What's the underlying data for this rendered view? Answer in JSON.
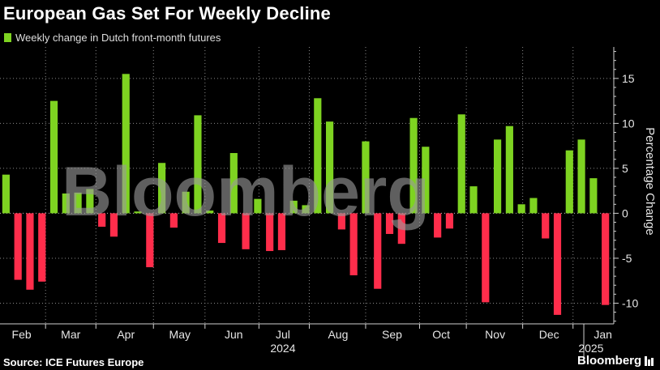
{
  "header": {
    "title": "European Gas Set For Weekly Decline"
  },
  "footer": {
    "source": "Source: ICE Futures Europe",
    "brand": "Bloomberg"
  },
  "watermark": "Bloomberg",
  "colors": {
    "positive": "#7ed321",
    "negative": "#ff2d4b",
    "background": "#000000",
    "grid": "#8a8a8a"
  },
  "chart_data": {
    "type": "bar",
    "title": "European Gas Set For Weekly Decline",
    "legend": [
      "Weekly change in Dutch front-month futures"
    ],
    "legend_position": "top-left",
    "xlabel": "",
    "ylabel": "Percentage Change",
    "ylim": [
      -12.3,
      18.5
    ],
    "yticks": [
      -10,
      -5,
      0,
      5,
      10,
      15
    ],
    "grid": true,
    "x_range": [
      0,
      51.2
    ],
    "x_year_labels": [
      {
        "label": "2024",
        "pos": 23.6
      },
      {
        "label": "2025",
        "pos": 49.3
      }
    ],
    "x_month_labels": [
      {
        "label": "Feb",
        "pos": 1.8
      },
      {
        "label": "Mar",
        "pos": 5.9
      },
      {
        "label": "Apr",
        "pos": 10.5
      },
      {
        "label": "May",
        "pos": 15.0
      },
      {
        "label": "Jun",
        "pos": 19.5
      },
      {
        "label": "Jul",
        "pos": 23.6
      },
      {
        "label": "Aug",
        "pos": 28.2
      },
      {
        "label": "Sep",
        "pos": 32.7
      },
      {
        "label": "Oct",
        "pos": 36.8
      },
      {
        "label": "Nov",
        "pos": 41.3
      },
      {
        "label": "Dec",
        "pos": 45.8
      },
      {
        "label": "Jan",
        "pos": 50.3
      }
    ],
    "month_boundaries": [
      3.8,
      8.0,
      12.8,
      17.1,
      21.6,
      25.8,
      30.5,
      35.0,
      38.9,
      43.6,
      47.8
    ],
    "series": [
      {
        "name": "Weekly change in Dutch front-month futures",
        "values": [
          4.3,
          -7.4,
          -8.5,
          -7.6,
          12.5,
          2.2,
          2.3,
          2.7,
          -1.5,
          -2.6,
          15.5,
          0.2,
          -6.0,
          5.6,
          -1.6,
          2.4,
          10.9,
          0.3,
          -3.3,
          6.7,
          -4.0,
          1.6,
          -4.2,
          -4.1,
          1.4,
          0.9,
          12.8,
          10.2,
          -1.8,
          -6.9,
          8.0,
          -8.4,
          -2.3,
          -3.4,
          10.6,
          7.4,
          -2.7,
          -1.7,
          11.0,
          3.0,
          -9.9,
          8.2,
          9.7,
          1.0,
          1.7,
          -2.8,
          -11.3,
          7.0,
          8.2,
          3.9,
          -10.2
        ]
      }
    ]
  }
}
